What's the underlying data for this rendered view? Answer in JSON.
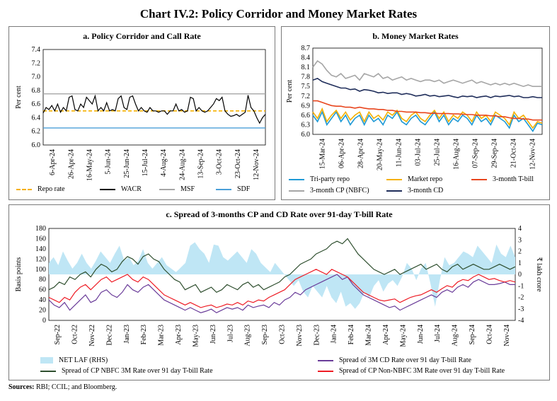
{
  "title": "Chart IV.2: Policy Corridor and Money Market Rates",
  "sources_label": "Sources:",
  "sources_text": " RBI; CCIL; and Bloomberg.",
  "chart_data": [
    {
      "id": "a",
      "type": "line",
      "title": "a. Policy Corridor and Call Rate",
      "ylabel": "Per cent",
      "ylim": [
        6.0,
        7.4
      ],
      "yticks": [
        "6.0",
        "6.2",
        "6.4",
        "6.6",
        "6.8",
        "7.0",
        "7.2",
        "7.4"
      ],
      "xticks": [
        "6-Apr-24",
        "26-Apr-24",
        "16-May-24",
        "5-Jun-24",
        "25-Jun-24",
        "15-Jul-24",
        "4-Aug-24",
        "24-Aug-24",
        "13-Sep-24",
        "3-Oct-24",
        "23-Oct-24",
        "12-Nov-24"
      ],
      "legend": [
        "Repo rate",
        "WACR",
        "MSF",
        "SDF"
      ],
      "series": [
        {
          "name": "Repo rate",
          "color": "#f5b000",
          "values": [
            6.5,
            6.5
          ]
        },
        {
          "name": "WACR",
          "color": "#000000",
          "values": [
            6.47,
            6.55,
            6.52,
            6.58,
            6.5,
            6.6,
            6.48,
            6.55,
            6.5,
            6.7,
            6.72,
            6.52,
            6.5,
            6.6,
            6.55,
            6.7,
            6.65,
            6.6,
            6.72,
            6.5,
            6.55,
            6.5,
            6.62,
            6.5,
            6.52,
            6.5,
            6.68,
            6.72,
            6.55,
            6.52,
            6.7,
            6.72,
            6.6,
            6.5,
            6.55,
            6.5,
            6.48,
            6.55,
            6.5,
            6.5,
            6.48,
            6.5,
            6.5,
            6.45,
            6.5,
            6.5,
            6.6,
            6.5,
            6.52,
            6.48,
            6.5,
            6.7,
            6.68,
            6.5,
            6.55,
            6.5,
            6.48,
            6.5,
            6.55,
            6.6,
            6.68,
            6.65,
            6.7,
            6.5,
            6.45,
            6.42,
            6.43,
            6.45,
            6.42,
            6.45,
            6.48,
            6.73,
            6.55,
            6.5,
            6.4,
            6.32,
            6.4,
            6.45
          ]
        },
        {
          "name": "MSF",
          "color": "#a6a6a6",
          "values": [
            6.75,
            6.75
          ]
        },
        {
          "name": "SDF",
          "color": "#4a9fd8",
          "values": [
            6.25,
            6.25
          ]
        }
      ]
    },
    {
      "id": "b",
      "type": "line",
      "title": "b. Money Market Rates",
      "ylabel": "Per cent",
      "ylim": [
        6.0,
        8.7
      ],
      "yticks": [
        "6.0",
        "6.3",
        "6.6",
        "6.9",
        "7.2",
        "7.5",
        "7.8",
        "8.1",
        "8.4",
        "8.7"
      ],
      "xticks": [
        "15-Mar-24",
        "06-Apr-24",
        "28-Apr-24",
        "20-May-24",
        "11-Jun-24",
        "03-Jul-24",
        "25-Jul-24",
        "16-Aug-24",
        "07-Sep-24",
        "29-Sep-24",
        "21-Oct-24",
        "12-Nov-24"
      ],
      "legend": [
        "Tri-party repo",
        "Market repo",
        "3-month T-bill",
        "3-month CP (NBFC)",
        "3-month CD"
      ],
      "series": [
        {
          "name": "Tri-party repo",
          "color": "#1f9ad6",
          "values": [
            6.6,
            6.4,
            6.7,
            6.3,
            6.5,
            6.7,
            6.4,
            6.6,
            6.3,
            6.5,
            6.6,
            6.3,
            6.6,
            6.4,
            6.5,
            6.3,
            6.6,
            6.5,
            6.7,
            6.4,
            6.3,
            6.5,
            6.6,
            6.4,
            6.3,
            6.5,
            6.7,
            6.4,
            6.6,
            6.3,
            6.5,
            6.4,
            6.6,
            6.5,
            6.3,
            6.6,
            6.4,
            6.5,
            6.3,
            6.6,
            6.5,
            6.4,
            6.2,
            6.6,
            6.4,
            6.5,
            6.3,
            6.1,
            6.35,
            6.3
          ]
        },
        {
          "name": "Market repo",
          "color": "#f5b000",
          "values": [
            6.7,
            6.5,
            6.8,
            6.4,
            6.6,
            6.75,
            6.5,
            6.7,
            6.45,
            6.6,
            6.7,
            6.4,
            6.7,
            6.5,
            6.6,
            6.45,
            6.7,
            6.6,
            6.75,
            6.5,
            6.4,
            6.6,
            6.7,
            6.5,
            6.4,
            6.6,
            6.75,
            6.5,
            6.7,
            6.4,
            6.6,
            6.5,
            6.7,
            6.6,
            6.4,
            6.7,
            6.5,
            6.6,
            6.4,
            6.7,
            6.6,
            6.5,
            6.3,
            6.7,
            6.5,
            6.6,
            6.4,
            6.2,
            6.4,
            6.35
          ]
        },
        {
          "name": "3-month T-bill",
          "color": "#e8461e",
          "values": [
            7.05,
            7.05,
            7.0,
            6.95,
            6.9,
            6.88,
            6.88,
            6.85,
            6.85,
            6.82,
            6.85,
            6.82,
            6.8,
            6.8,
            6.78,
            6.78,
            6.75,
            6.75,
            6.72,
            6.72,
            6.7,
            6.7,
            6.7,
            6.68,
            6.68,
            6.66,
            6.66,
            6.65,
            6.65,
            6.65,
            6.64,
            6.64,
            6.63,
            6.62,
            6.62,
            6.6,
            6.6,
            6.6,
            6.58,
            6.58,
            6.55,
            6.55,
            6.52,
            6.5,
            6.5,
            6.48,
            6.48,
            6.45,
            6.45,
            6.45
          ]
        },
        {
          "name": "3-month CP (NBFC)",
          "color": "#a6a6a6",
          "values": [
            8.1,
            8.3,
            8.2,
            8.0,
            7.85,
            7.8,
            7.9,
            7.75,
            7.8,
            7.85,
            7.7,
            7.9,
            7.85,
            7.8,
            7.9,
            7.75,
            7.8,
            7.7,
            7.75,
            7.8,
            7.7,
            7.75,
            7.7,
            7.65,
            7.7,
            7.7,
            7.65,
            7.7,
            7.6,
            7.65,
            7.7,
            7.65,
            7.6,
            7.65,
            7.7,
            7.6,
            7.65,
            7.6,
            7.55,
            7.6,
            7.55,
            7.6,
            7.55,
            7.6,
            7.55,
            7.5,
            7.55,
            7.5,
            7.5,
            7.5
          ]
        },
        {
          "name": "3-month CD",
          "color": "#1f2d5a",
          "values": [
            7.7,
            7.75,
            7.65,
            7.6,
            7.55,
            7.5,
            7.45,
            7.45,
            7.4,
            7.42,
            7.35,
            7.4,
            7.38,
            7.35,
            7.3,
            7.32,
            7.28,
            7.3,
            7.3,
            7.25,
            7.28,
            7.25,
            7.2,
            7.22,
            7.25,
            7.2,
            7.22,
            7.18,
            7.2,
            7.22,
            7.18,
            7.15,
            7.2,
            7.18,
            7.2,
            7.15,
            7.18,
            7.2,
            7.15,
            7.2,
            7.18,
            7.2,
            7.22,
            7.18,
            7.2,
            7.15,
            7.15,
            7.18,
            7.15,
            7.15
          ]
        }
      ]
    },
    {
      "id": "c",
      "type": "line",
      "title": "c. Spread of 3-months CP and CD Rate over 91-day T-bill Rate",
      "ylabel": "Basis points",
      "y2label": "₹ lakh crore",
      "ylim": [
        0,
        180
      ],
      "y2lim": [
        -4,
        4
      ],
      "yticks": [
        "0",
        "20",
        "40",
        "60",
        "80",
        "100",
        "120",
        "140",
        "160",
        "180"
      ],
      "y2ticks": [
        "-4",
        "-3",
        "-2",
        "-1",
        "0",
        "1",
        "2",
        "3",
        "4"
      ],
      "xticks": [
        "Sep-22",
        "Oct-22",
        "Nov-22",
        "Dec-22",
        "Jan-23",
        "Feb-23",
        "Mar-23",
        "Apr-23",
        "May-23",
        "Jun-23",
        "Jul-23",
        "Aug-23",
        "Sep-23",
        "Oct-23",
        "Nov-23",
        "Dec-23",
        "Jan-24",
        "Feb-24",
        "Mar-24",
        "Apr-24",
        "May-24",
        "Jun-24",
        "Jul-24",
        "Aug-24",
        "Sep-24",
        "Oct-24",
        "Nov-24"
      ],
      "legend": [
        "NET LAF (RHS)",
        "Spread of 3M CD Rate over 91 day T-bill Rate",
        "Spread of CP NBFC 3M Rate over 91 day T-bill Rate",
        "Spread of CP Non-NBFC 3M Rate over 91 day T-bill Rate"
      ],
      "series": [
        {
          "name": "NET LAF (RHS)",
          "color": "#bfe6f5",
          "values": [
            1.0,
            1.5,
            0.8,
            2.0,
            1.2,
            0.5,
            1.0,
            1.8,
            1.0,
            0.5,
            1.2,
            2.0,
            1.5,
            1.0,
            1.8,
            2.5,
            1.2,
            1.5,
            0.8,
            1.2,
            2.2,
            1.0,
            0.5,
            1.0,
            1.5,
            0.8,
            0.5,
            0.2,
            0.6,
            1.0,
            2.5,
            2.8,
            2.2,
            1.8,
            1.0,
            2.6,
            2.5,
            1.5,
            1.2,
            1.6,
            2.0,
            1.5,
            1.0,
            2.2,
            1.8,
            1.0,
            0.6,
            0.2,
            1.0,
            0.5,
            0.0,
            -0.5,
            -1.0,
            -0.5,
            -1.5,
            -2.0,
            -1.0,
            -1.5,
            -2.0,
            -1.0,
            -2.0,
            -2.5,
            -1.5,
            -2.8,
            -2.5,
            -3.0,
            -2.5,
            -1.5,
            -2.0,
            -1.0,
            -0.5,
            -1.5,
            -0.8,
            -0.5,
            -1.0,
            -0.2,
            1.0,
            0.5,
            -0.5,
            0.5,
            1.0,
            -0.8,
            -2.8,
            -0.5,
            1.5,
            0.8,
            1.0,
            1.5,
            2.0,
            1.8,
            1.5,
            2.5,
            2.0,
            1.5,
            1.0,
            2.6,
            1.8,
            1.5,
            2.5,
            1.5
          ]
        },
        {
          "name": "Spread of 3M CD Rate over 91 day T-bill Rate",
          "color": "#6a3c99",
          "values": [
            40,
            30,
            25,
            35,
            20,
            30,
            40,
            50,
            35,
            40,
            55,
            60,
            50,
            45,
            55,
            70,
            60,
            55,
            65,
            70,
            60,
            50,
            40,
            35,
            30,
            25,
            20,
            25,
            20,
            15,
            18,
            22,
            15,
            20,
            25,
            22,
            25,
            20,
            30,
            25,
            28,
            30,
            25,
            35,
            30,
            40,
            45,
            55,
            50,
            60,
            65,
            70,
            75,
            80,
            85,
            90,
            80,
            85,
            70,
            60,
            50,
            45,
            40,
            35,
            30,
            25,
            28,
            20,
            25,
            30,
            35,
            40,
            45,
            50,
            45,
            55,
            60,
            55,
            65,
            70,
            65,
            75,
            80,
            75,
            70,
            70,
            72,
            75,
            70,
            70
          ]
        },
        {
          "name": "Spread of CP NBFC 3M Rate over 91 day T-bill Rate",
          "color": "#2f4f2f",
          "values": [
            60,
            65,
            75,
            70,
            85,
            80,
            90,
            95,
            85,
            100,
            110,
            105,
            95,
            100,
            115,
            125,
            120,
            110,
            125,
            130,
            120,
            115,
            100,
            90,
            80,
            75,
            60,
            65,
            70,
            55,
            60,
            65,
            55,
            60,
            70,
            65,
            60,
            70,
            75,
            65,
            70,
            60,
            65,
            70,
            75,
            85,
            90,
            100,
            110,
            115,
            120,
            130,
            135,
            140,
            150,
            155,
            150,
            160,
            145,
            130,
            120,
            110,
            100,
            95,
            90,
            95,
            100,
            90,
            95,
            100,
            105,
            110,
            100,
            105,
            110,
            100,
            95,
            105,
            110,
            100,
            105,
            110,
            105,
            100,
            100,
            105,
            110,
            105,
            100,
            105
          ]
        },
        {
          "name": "Spread of CP Non-NBFC 3M Rate over 91 day T-bill Rate",
          "color": "#ee1c25",
          "values": [
            45,
            40,
            35,
            45,
            40,
            55,
            65,
            70,
            60,
            70,
            80,
            85,
            75,
            80,
            85,
            90,
            80,
            75,
            85,
            80,
            70,
            60,
            50,
            45,
            40,
            35,
            30,
            35,
            30,
            25,
            28,
            30,
            25,
            28,
            32,
            30,
            35,
            30,
            38,
            35,
            40,
            38,
            45,
            50,
            55,
            60,
            70,
            80,
            85,
            90,
            95,
            100,
            95,
            90,
            100,
            95,
            90,
            85,
            75,
            65,
            55,
            50,
            45,
            40,
            38,
            40,
            42,
            35,
            40,
            45,
            48,
            50,
            55,
            60,
            55,
            62,
            68,
            65,
            75,
            80,
            78,
            85,
            90,
            85,
            80,
            82,
            78,
            75,
            78,
            75
          ]
        }
      ]
    }
  ]
}
